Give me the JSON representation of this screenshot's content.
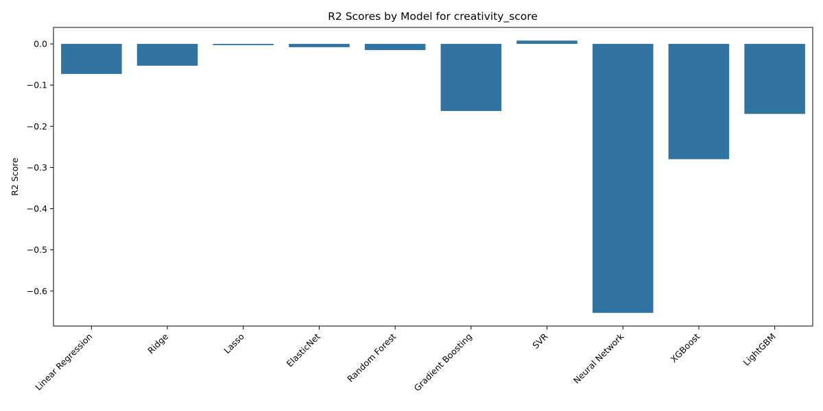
{
  "chart_data": {
    "type": "bar",
    "title": "R2 Scores by Model for creativity_score",
    "xlabel": "",
    "ylabel": "R2 Score",
    "categories": [
      "Linear Regression",
      "Ridge",
      "Lasso",
      "ElasticNet",
      "Random Forest",
      "Gradient Boosting",
      "SVR",
      "Neural Network",
      "XGBoost",
      "LightGBM"
    ],
    "values": [
      -0.073,
      -0.053,
      -0.003,
      -0.008,
      -0.015,
      -0.163,
      0.008,
      -0.653,
      -0.28,
      -0.17
    ],
    "ylim": [
      -0.685,
      0.04
    ],
    "yticks": [
      0.0,
      -0.1,
      -0.2,
      -0.3,
      -0.4,
      -0.5,
      -0.6
    ],
    "ytick_labels": [
      "0.0",
      "−0.1",
      "−0.2",
      "−0.3",
      "−0.4",
      "−0.5",
      "−0.6"
    ],
    "bar_color": "#3274a1",
    "grid": false,
    "legend": "none"
  }
}
